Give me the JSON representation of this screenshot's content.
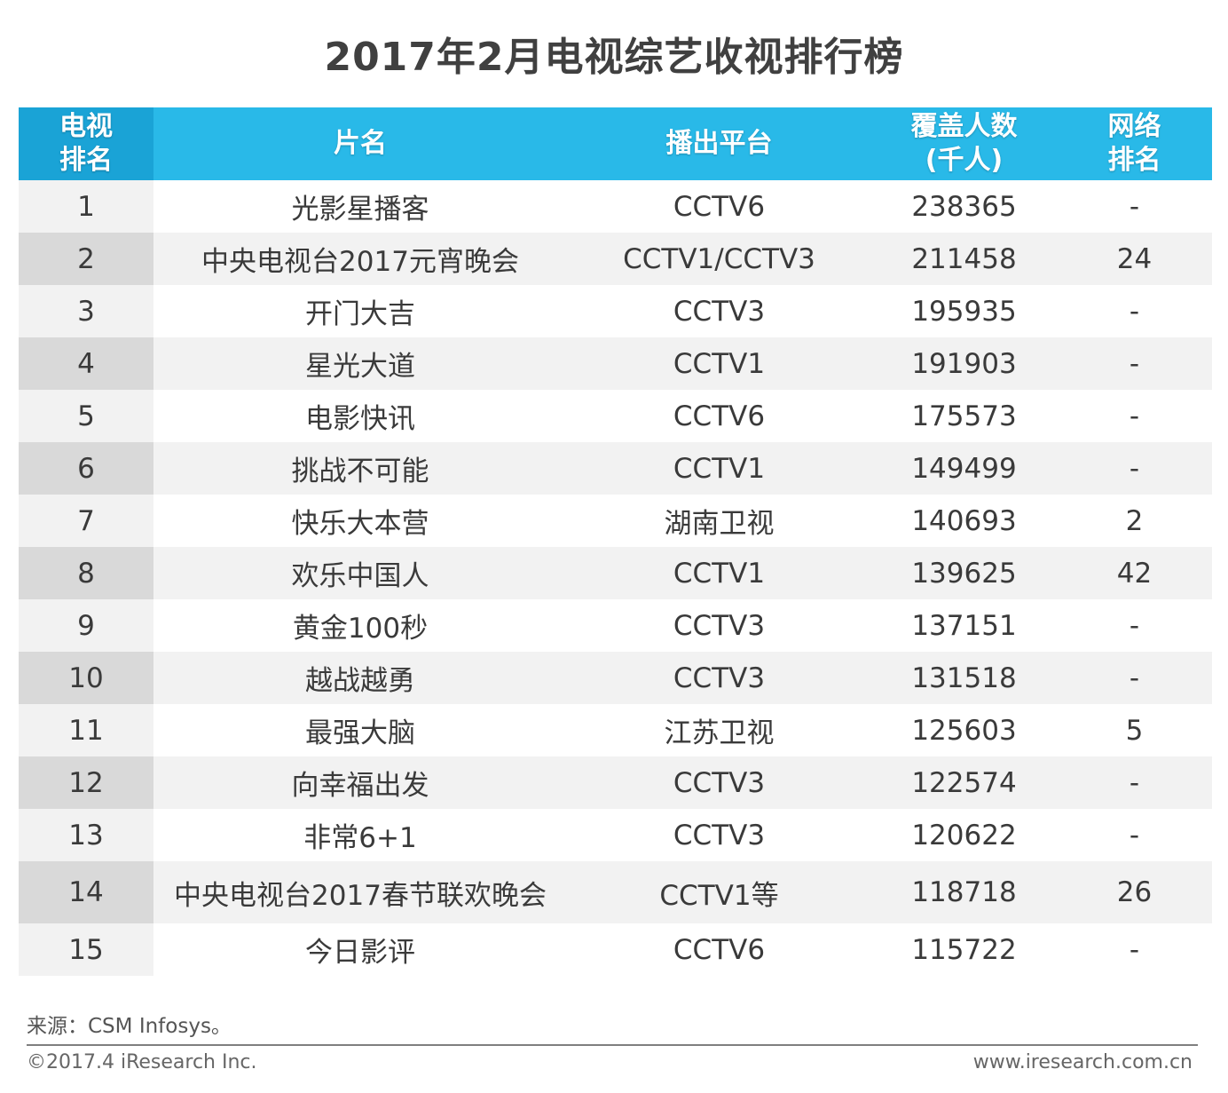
{
  "title": "2017年2月电视综艺收视排行榜",
  "table": {
    "headers": {
      "tv_rank": [
        "电视",
        "排名"
      ],
      "name": "片名",
      "platform": "播出平台",
      "coverage": [
        "覆盖人数",
        "(千人)"
      ],
      "web_rank": [
        "网络",
        "排名"
      ]
    },
    "rows": [
      {
        "rank": "1",
        "name": "光影星播客",
        "platform": "CCTV6",
        "coverage": "238365",
        "web_rank": "-"
      },
      {
        "rank": "2",
        "name": "中央电视台2017元宵晚会",
        "platform": "CCTV1/CCTV3",
        "coverage": "211458",
        "web_rank": "24"
      },
      {
        "rank": "3",
        "name": "开门大吉",
        "platform": "CCTV3",
        "coverage": "195935",
        "web_rank": "-"
      },
      {
        "rank": "4",
        "name": "星光大道",
        "platform": "CCTV1",
        "coverage": "191903",
        "web_rank": "-"
      },
      {
        "rank": "5",
        "name": "电影快讯",
        "platform": "CCTV6",
        "coverage": "175573",
        "web_rank": "-"
      },
      {
        "rank": "6",
        "name": "挑战不可能",
        "platform": "CCTV1",
        "coverage": "149499",
        "web_rank": "-"
      },
      {
        "rank": "7",
        "name": "快乐大本营",
        "platform": "湖南卫视",
        "coverage": "140693",
        "web_rank": "2"
      },
      {
        "rank": "8",
        "name": "欢乐中国人",
        "platform": "CCTV1",
        "coverage": "139625",
        "web_rank": "42"
      },
      {
        "rank": "9",
        "name": "黄金100秒",
        "platform": "CCTV3",
        "coverage": "137151",
        "web_rank": "-"
      },
      {
        "rank": "10",
        "name": "越战越勇",
        "platform": "CCTV3",
        "coverage": "131518",
        "web_rank": "-"
      },
      {
        "rank": "11",
        "name": "最强大脑",
        "platform": "江苏卫视",
        "coverage": "125603",
        "web_rank": "5"
      },
      {
        "rank": "12",
        "name": "向幸福出发",
        "platform": "CCTV3",
        "coverage": "122574",
        "web_rank": "-"
      },
      {
        "rank": "13",
        "name": "非常6+1",
        "platform": "CCTV3",
        "coverage": "120622",
        "web_rank": "-"
      },
      {
        "rank": "14",
        "name": "中央电视台2017春节联欢晚会",
        "platform": "CCTV1等",
        "coverage": "118718",
        "web_rank": "26"
      },
      {
        "rank": "15",
        "name": "今日影评",
        "platform": "CCTV6",
        "coverage": "115722",
        "web_rank": "-"
      }
    ]
  },
  "footer": {
    "source": "来源：CSM Infosys。",
    "copyright": "©2017.4 iResearch Inc.",
    "website": "www.iresearch.com.cn"
  },
  "colors": {
    "header": "#29b9e8",
    "header_rank": "#1aa3d6",
    "row_alt": "#f2f2f2",
    "rank_cell_alt": "#d9d9d9"
  }
}
